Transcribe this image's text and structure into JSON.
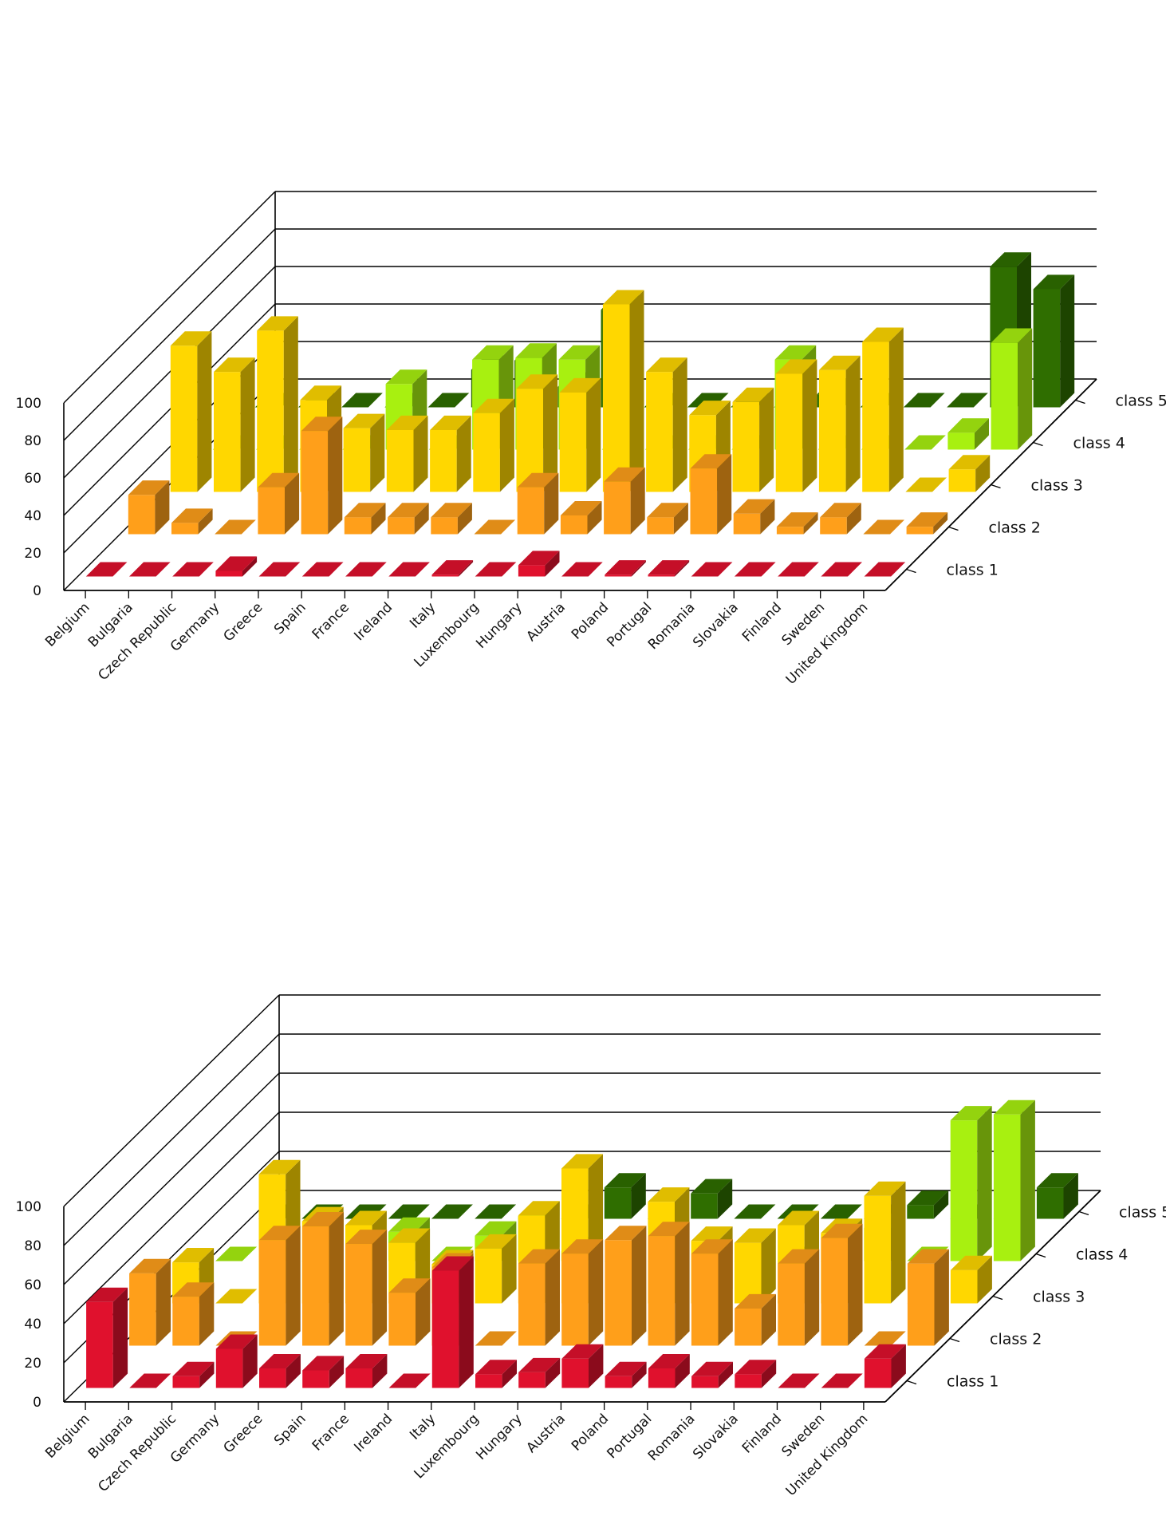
{
  "colors": {
    "class_1": "#e0112d",
    "class_2": "#ff9f1a",
    "class_3": "#ffd700",
    "class_4": "#a8f010",
    "class_5": "#2f6e00",
    "axis": "#000000"
  },
  "chart_data": [
    {
      "type": "bar",
      "projection": "3d",
      "categories": [
        "Belgium",
        "Bulgaria",
        "Czech Republic",
        "Germany",
        "Greece",
        "Spain",
        "France",
        "Ireland",
        "Italy",
        "Luxembourg",
        "Hungary",
        "Austria",
        "Poland",
        "Portugal",
        "Romania",
        "Slovakia",
        "Finland",
        "Sweden",
        "United Kingdom"
      ],
      "series_labels": [
        "class 1",
        "class 2",
        "class 3",
        "class 4",
        "class 5"
      ],
      "ylim": [
        0,
        100
      ],
      "yticks": [
        "0",
        "20",
        "40",
        "60",
        "80",
        "100"
      ],
      "grid": true,
      "series": [
        {
          "name": "class 1",
          "values": [
            0,
            0,
            0,
            3,
            0,
            0,
            0,
            0,
            1,
            0,
            6,
            0,
            1,
            1,
            0,
            0,
            0,
            0,
            0
          ]
        },
        {
          "name": "class 2",
          "values": [
            21,
            6,
            0,
            25,
            55,
            9,
            9,
            9,
            0,
            25,
            10,
            28,
            9,
            35,
            11,
            4,
            9,
            0,
            4
          ]
        },
        {
          "name": "class 3",
          "values": [
            78,
            64,
            86,
            49,
            34,
            33,
            33,
            42,
            55,
            53,
            100,
            64,
            41,
            48,
            63,
            65,
            80,
            0,
            12
          ]
        },
        {
          "name": "class 4",
          "values": [
            0,
            0,
            0,
            0,
            35,
            0,
            48,
            49,
            48,
            0,
            0,
            0,
            0,
            48,
            0,
            0,
            0,
            9,
            57
          ]
        },
        {
          "name": "class 5",
          "values": [
            0,
            0,
            0,
            0,
            0,
            20,
            25,
            11,
            52,
            0,
            0,
            0,
            0,
            7,
            0,
            0,
            0,
            75,
            63
          ]
        }
      ]
    },
    {
      "type": "bar",
      "projection": "3d",
      "categories": [
        "Belgium",
        "Bulgaria",
        "Czech Republic",
        "Germany",
        "Greece",
        "Spain",
        "France",
        "Ireland",
        "Italy",
        "Luxembourg",
        "Hungary",
        "Austria",
        "Poland",
        "Portugal",
        "Romania",
        "Slovakia",
        "Finland",
        "Sweden",
        "United Kingdom"
      ],
      "series_labels": [
        "class 1",
        "class 2",
        "class 3",
        "class 4",
        "class 5"
      ],
      "ylim": [
        0,
        100
      ],
      "yticks": [
        "0",
        "20",
        "40",
        "60",
        "80",
        "100"
      ],
      "grid": true,
      "series": [
        {
          "name": "class 1",
          "values": [
            44,
            0,
            6,
            20,
            10,
            9,
            10,
            0,
            60,
            7,
            8,
            15,
            6,
            10,
            6,
            7,
            0,
            0,
            15
          ]
        },
        {
          "name": "class 2",
          "values": [
            37,
            25,
            0,
            54,
            61,
            52,
            27,
            40,
            0,
            42,
            47,
            54,
            56,
            47,
            19,
            42,
            55,
            0,
            42
          ]
        },
        {
          "name": "class 3",
          "values": [
            21,
            0,
            66,
            42,
            40,
            31,
            20,
            28,
            45,
            69,
            0,
            52,
            32,
            31,
            40,
            36,
            55,
            0,
            17
          ]
        },
        {
          "name": "class 4",
          "values": [
            0,
            0,
            0,
            0,
            15,
            0,
            13,
            23,
            5,
            0,
            0,
            0,
            0,
            0,
            0,
            17,
            0,
            72,
            75
          ]
        },
        {
          "name": "class 5",
          "values": [
            0,
            0,
            0,
            0,
            0,
            0,
            0,
            0,
            16,
            0,
            13,
            0,
            0,
            0,
            0,
            7,
            0,
            0,
            16
          ]
        }
      ]
    }
  ]
}
